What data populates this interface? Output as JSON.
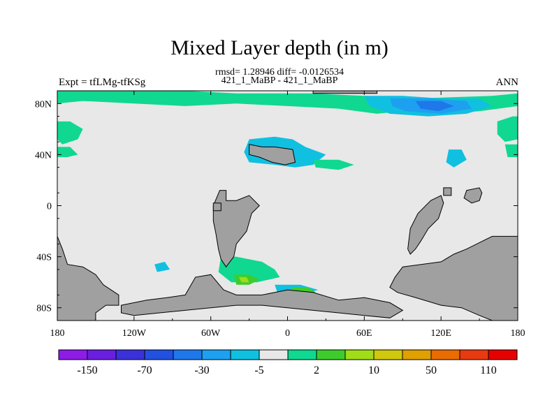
{
  "chart_data": {
    "type": "heatmap",
    "title": "Mixed Layer depth (in m)",
    "stats_line": "rmsd= 1.28946 diff= -0.0126534",
    "case_line": "421_1_MaBP - 421_1_MaBP",
    "left_label": "Expt = tfLMg-tfKSg",
    "right_label": "ANN",
    "xlim": [
      -180,
      180
    ],
    "ylim": [
      -90,
      90
    ],
    "x_ticks": [
      {
        "value": -180,
        "label": "180"
      },
      {
        "value": -120,
        "label": "120W"
      },
      {
        "value": -60,
        "label": "60W"
      },
      {
        "value": 0,
        "label": "0"
      },
      {
        "value": 60,
        "label": "60E"
      },
      {
        "value": 120,
        "label": "120E"
      },
      {
        "value": 180,
        "label": "180"
      }
    ],
    "y_ticks": [
      {
        "value": 80,
        "label": "80N"
      },
      {
        "value": 40,
        "label": "40N"
      },
      {
        "value": 0,
        "label": "0"
      },
      {
        "value": -40,
        "label": "40S"
      },
      {
        "value": -80,
        "label": "80S"
      }
    ],
    "colorbar": {
      "colors": [
        "#8c1ce6",
        "#6a1ee0",
        "#3a32d8",
        "#2250e0",
        "#1e78ea",
        "#1ea0f0",
        "#10c0e0",
        "#e8e8e8",
        "#10d890",
        "#3ecc2c",
        "#a0dc18",
        "#d0c80e",
        "#e0a000",
        "#e86c00",
        "#e83a10",
        "#e60000"
      ],
      "labels": [
        {
          "after_index": 0,
          "label": "-150"
        },
        {
          "after_index": 2,
          "label": "-70"
        },
        {
          "after_index": 4,
          "label": "-30"
        },
        {
          "after_index": 6,
          "label": "-5"
        },
        {
          "after_index": 8,
          "label": "2"
        },
        {
          "after_index": 10,
          "label": "10"
        },
        {
          "after_index": 12,
          "label": "50"
        },
        {
          "after_index": 14,
          "label": "110"
        }
      ]
    },
    "land_color": "#a0a0a0",
    "ocean_color": "#e8e8e8",
    "land_masks": [
      {
        "name": "south-america",
        "points": [
          [
            -53,
            12
          ],
          [
            -48,
            12
          ],
          [
            -48,
            4
          ],
          [
            -40,
            4
          ],
          [
            -30,
            8
          ],
          [
            -22,
            0
          ],
          [
            -28,
            -6
          ],
          [
            -32,
            -20
          ],
          [
            -40,
            -30
          ],
          [
            -42,
            -40
          ],
          [
            -48,
            -48
          ],
          [
            -52,
            -42
          ],
          [
            -54,
            -34
          ],
          [
            -56,
            -22
          ],
          [
            -58,
            -12
          ],
          [
            -58,
            0
          ]
        ]
      },
      {
        "name": "africa",
        "points": [
          [
            120,
            8
          ],
          [
            122,
            2
          ],
          [
            118,
            -10
          ],
          [
            110,
            -18
          ],
          [
            104,
            -28
          ],
          [
            100,
            -34
          ],
          [
            96,
            -38
          ],
          [
            94,
            -34
          ],
          [
            96,
            -18
          ],
          [
            102,
            -6
          ],
          [
            112,
            4
          ]
        ]
      },
      {
        "name": "western-edge-landmass",
        "points": [
          [
            -180,
            -24
          ],
          [
            -176,
            -34
          ],
          [
            -172,
            -46
          ],
          [
            -160,
            -48
          ],
          [
            -150,
            -54
          ],
          [
            -144,
            -62
          ],
          [
            -138,
            -66
          ],
          [
            -132,
            -70
          ],
          [
            -132,
            -78
          ],
          [
            -142,
            -78
          ],
          [
            -150,
            -84
          ],
          [
            -150,
            -90
          ],
          [
            -180,
            -90
          ]
        ]
      },
      {
        "name": "eastern-continent",
        "points": [
          [
            180,
            -24
          ],
          [
            160,
            -24
          ],
          [
            148,
            -30
          ],
          [
            140,
            -34
          ],
          [
            130,
            -38
          ],
          [
            120,
            -44
          ],
          [
            90,
            -48
          ],
          [
            84,
            -56
          ],
          [
            80,
            -64
          ],
          [
            86,
            -68
          ],
          [
            100,
            -72
          ],
          [
            120,
            -78
          ],
          [
            136,
            -80
          ],
          [
            150,
            -86
          ],
          [
            160,
            -90
          ],
          [
            180,
            -90
          ]
        ]
      },
      {
        "name": "antarctic-ridge",
        "points": [
          [
            -130,
            -78
          ],
          [
            -110,
            -74
          ],
          [
            -94,
            -72
          ],
          [
            -80,
            -70
          ],
          [
            -72,
            -56
          ],
          [
            -60,
            -54
          ],
          [
            -50,
            -66
          ],
          [
            -40,
            -70
          ],
          [
            -20,
            -70
          ],
          [
            0,
            -66
          ],
          [
            20,
            -68
          ],
          [
            40,
            -74
          ],
          [
            60,
            -72
          ],
          [
            80,
            -76
          ],
          [
            90,
            -82
          ],
          [
            80,
            -88
          ],
          [
            60,
            -86
          ],
          [
            40,
            -84
          ],
          [
            20,
            -82
          ],
          [
            0,
            -80
          ],
          [
            -20,
            -78
          ],
          [
            -40,
            -78
          ],
          [
            -60,
            -80
          ],
          [
            -80,
            -82
          ],
          [
            -100,
            -84
          ],
          [
            -120,
            -86
          ],
          [
            -130,
            -84
          ]
        ]
      },
      {
        "name": "northern-island",
        "points": [
          [
            -30,
            48
          ],
          [
            -20,
            46
          ],
          [
            -10,
            46
          ],
          [
            4,
            44
          ],
          [
            6,
            34
          ],
          [
            -2,
            32
          ],
          [
            -12,
            34
          ],
          [
            -22,
            38
          ],
          [
            -30,
            40
          ]
        ]
      },
      {
        "name": "small-island-a",
        "points": [
          [
            122,
            14
          ],
          [
            128,
            14
          ],
          [
            128,
            8
          ],
          [
            122,
            8
          ]
        ]
      },
      {
        "name": "small-island-b",
        "points": [
          [
            -58,
            2
          ],
          [
            -52,
            2
          ],
          [
            -52,
            -4
          ],
          [
            -58,
            -4
          ]
        ]
      },
      {
        "name": "arctic-strip",
        "points": [
          [
            20,
            90
          ],
          [
            70,
            90
          ],
          [
            70,
            88
          ],
          [
            20,
            88
          ]
        ]
      },
      {
        "name": "east-pacific-island",
        "points": [
          [
            140,
            12
          ],
          [
            150,
            14
          ],
          [
            152,
            10
          ],
          [
            150,
            4
          ],
          [
            144,
            2
          ],
          [
            138,
            6
          ]
        ]
      }
    ],
    "anomaly_patches": [
      {
        "name": "arctic-band-green",
        "color": "#10d890",
        "points": [
          [
            -180,
            90
          ],
          [
            -80,
            90
          ],
          [
            -40,
            88
          ],
          [
            20,
            88
          ],
          [
            60,
            86
          ],
          [
            100,
            84
          ],
          [
            160,
            86
          ],
          [
            180,
            88
          ],
          [
            180,
            78
          ],
          [
            150,
            74
          ],
          [
            120,
            72
          ],
          [
            90,
            74
          ],
          [
            70,
            72
          ],
          [
            40,
            76
          ],
          [
            0,
            78
          ],
          [
            -40,
            80
          ],
          [
            -80,
            78
          ],
          [
            -120,
            80
          ],
          [
            -160,
            82
          ],
          [
            -180,
            80
          ]
        ]
      },
      {
        "name": "arctic-band-cyan",
        "color": "#10c0e0",
        "points": [
          [
            60,
            86
          ],
          [
            90,
            86
          ],
          [
            120,
            84
          ],
          [
            150,
            84
          ],
          [
            160,
            78
          ],
          [
            140,
            72
          ],
          [
            110,
            70
          ],
          [
            80,
            72
          ],
          [
            64,
            78
          ]
        ]
      },
      {
        "name": "arctic-band-blue",
        "color": "#1ea0f0",
        "points": [
          [
            80,
            84
          ],
          [
            110,
            84
          ],
          [
            140,
            82
          ],
          [
            144,
            76
          ],
          [
            120,
            72
          ],
          [
            92,
            74
          ],
          [
            82,
            78
          ]
        ]
      },
      {
        "name": "arctic-band-deep-blue",
        "color": "#1e78ea",
        "points": [
          [
            100,
            82
          ],
          [
            120,
            82
          ],
          [
            130,
            78
          ],
          [
            118,
            74
          ],
          [
            104,
            76
          ]
        ]
      },
      {
        "name": "north-pacific-west",
        "color": "#10d890",
        "points": [
          [
            -180,
            66
          ],
          [
            -170,
            66
          ],
          [
            -160,
            60
          ],
          [
            -164,
            52
          ],
          [
            -176,
            48
          ],
          [
            -180,
            52
          ]
        ]
      },
      {
        "name": "north-pacific-west-2",
        "color": "#10d890",
        "points": [
          [
            -180,
            46
          ],
          [
            -170,
            46
          ],
          [
            -164,
            40
          ],
          [
            -172,
            38
          ],
          [
            -180,
            38
          ]
        ]
      },
      {
        "name": "north-pacific-east",
        "color": "#10d890",
        "points": [
          [
            164,
            66
          ],
          [
            176,
            70
          ],
          [
            180,
            70
          ],
          [
            180,
            52
          ],
          [
            170,
            50
          ],
          [
            164,
            56
          ]
        ]
      },
      {
        "name": "north-pacific-east-2",
        "color": "#10d890",
        "points": [
          [
            170,
            48
          ],
          [
            180,
            48
          ],
          [
            180,
            38
          ],
          [
            172,
            38
          ]
        ]
      },
      {
        "name": "north-atlantic-cyan",
        "color": "#10c0e0",
        "points": [
          [
            -30,
            52
          ],
          [
            -10,
            54
          ],
          [
            4,
            52
          ],
          [
            14,
            46
          ],
          [
            30,
            40
          ],
          [
            20,
            32
          ],
          [
            6,
            30
          ],
          [
            -10,
            32
          ],
          [
            -30,
            34
          ],
          [
            -34,
            42
          ]
        ]
      },
      {
        "name": "north-atlantic-green",
        "color": "#10d890",
        "points": [
          [
            20,
            36
          ],
          [
            40,
            36
          ],
          [
            52,
            32
          ],
          [
            40,
            28
          ],
          [
            22,
            30
          ]
        ]
      },
      {
        "name": "east-atlantic-cyan",
        "color": "#10c0e0",
        "points": [
          [
            126,
            44
          ],
          [
            136,
            44
          ],
          [
            140,
            36
          ],
          [
            130,
            30
          ],
          [
            124,
            34
          ]
        ]
      },
      {
        "name": "south-atlantic-green",
        "color": "#10d890",
        "points": [
          [
            -52,
            -40
          ],
          [
            -40,
            -40
          ],
          [
            -20,
            -44
          ],
          [
            -10,
            -50
          ],
          [
            -6,
            -56
          ],
          [
            -24,
            -60
          ],
          [
            -44,
            -60
          ],
          [
            -54,
            -52
          ]
        ]
      },
      {
        "name": "south-atlantic-light-green",
        "color": "#3ecc2c",
        "points": [
          [
            -42,
            -54
          ],
          [
            -30,
            -54
          ],
          [
            -22,
            -58
          ],
          [
            -30,
            -62
          ],
          [
            -40,
            -62
          ]
        ]
      },
      {
        "name": "south-atlantic-yellow",
        "color": "#a0dc18",
        "points": [
          [
            -38,
            -56
          ],
          [
            -32,
            -56
          ],
          [
            -30,
            -60
          ],
          [
            -36,
            -60
          ]
        ]
      },
      {
        "name": "south-atlantic-cyan",
        "color": "#10c0e0",
        "points": [
          [
            -10,
            -62
          ],
          [
            10,
            -62
          ],
          [
            24,
            -66
          ],
          [
            10,
            -70
          ],
          [
            -8,
            -68
          ]
        ]
      },
      {
        "name": "south-atlantic-green-2",
        "color": "#3ecc2c",
        "points": [
          [
            4,
            -64
          ],
          [
            16,
            -64
          ],
          [
            22,
            -68
          ],
          [
            10,
            -70
          ],
          [
            2,
            -68
          ]
        ]
      },
      {
        "name": "south-pacific-cyan",
        "color": "#10c0e0",
        "points": [
          [
            -104,
            -46
          ],
          [
            -96,
            -44
          ],
          [
            -92,
            -50
          ],
          [
            -102,
            -52
          ]
        ]
      },
      {
        "name": "south-indian-cyan",
        "color": "#10c0e0",
        "points": [
          [
            90,
            -60
          ],
          [
            110,
            -62
          ],
          [
            116,
            -66
          ],
          [
            100,
            -70
          ],
          [
            88,
            -66
          ]
        ]
      },
      {
        "name": "south-indian-green",
        "color": "#10d890",
        "points": [
          [
            120,
            -50
          ],
          [
            130,
            -50
          ],
          [
            132,
            -56
          ],
          [
            122,
            -56
          ]
        ]
      }
    ]
  }
}
